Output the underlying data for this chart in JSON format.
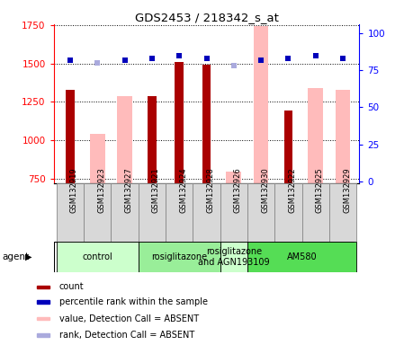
{
  "title": "GDS2453 / 218342_s_at",
  "samples": [
    "GSM132919",
    "GSM132923",
    "GSM132927",
    "GSM132921",
    "GSM132924",
    "GSM132928",
    "GSM132926",
    "GSM132930",
    "GSM132922",
    "GSM132925",
    "GSM132929"
  ],
  "count_values": [
    1330,
    null,
    null,
    1290,
    1510,
    1490,
    null,
    null,
    1195,
    null,
    null
  ],
  "absent_value_bars": [
    null,
    1045,
    1285,
    null,
    null,
    null,
    800,
    1740,
    null,
    1340,
    1330
  ],
  "percentile_dark": [
    82,
    null,
    82,
    83,
    85,
    83,
    null,
    82,
    83,
    85,
    83
  ],
  "percentile_light": [
    null,
    80,
    null,
    null,
    null,
    null,
    78,
    82,
    null,
    null,
    null
  ],
  "ylim": [
    725,
    1755
  ],
  "y_ticks": [
    750,
    1000,
    1250,
    1500,
    1750
  ],
  "right_yticks": [
    0,
    25,
    50,
    75,
    100
  ],
  "right_ylim": [
    -1,
    106
  ],
  "agent_groups": [
    {
      "label": "control",
      "start": 0,
      "end": 2,
      "color": "#ccffcc"
    },
    {
      "label": "rosiglitazone",
      "start": 3,
      "end": 5,
      "color": "#99ee99"
    },
    {
      "label": "rosiglitazone\nand AGN193109",
      "start": 6,
      "end": 6,
      "color": "#ccffcc"
    },
    {
      "label": "AM580",
      "start": 7,
      "end": 10,
      "color": "#55dd55"
    }
  ],
  "count_color": "#aa0000",
  "absent_bar_color": "#ffbbbb",
  "dark_blue": "#0000bb",
  "light_blue": "#aaaadd",
  "legend_labels": [
    "count",
    "percentile rank within the sample",
    "value, Detection Call = ABSENT",
    "rank, Detection Call = ABSENT"
  ],
  "agent_label": "agent"
}
